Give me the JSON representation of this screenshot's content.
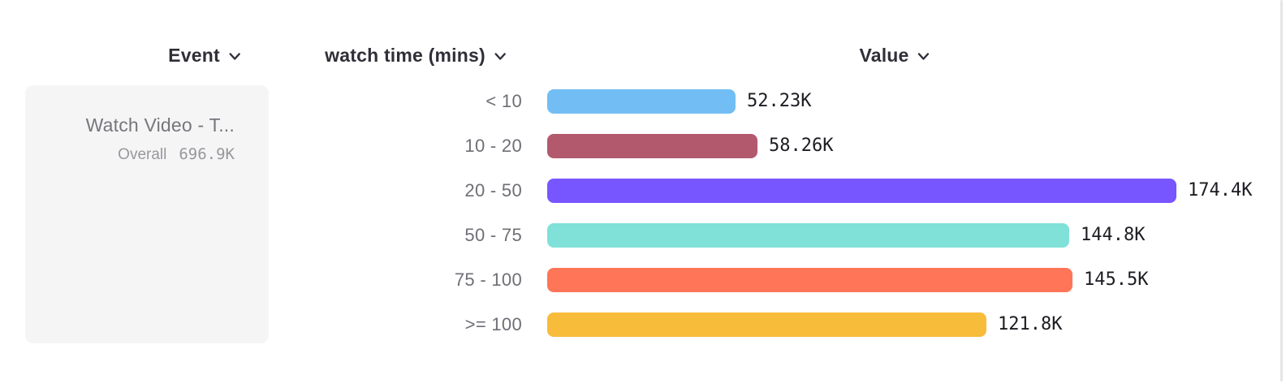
{
  "header": {
    "columns": [
      {
        "id": "event",
        "label": "Event"
      },
      {
        "id": "breakdown",
        "label": "watch time (mins)"
      },
      {
        "id": "value",
        "label": "Value"
      }
    ]
  },
  "event_card": {
    "title": "Watch Video - T...",
    "overall_label": "Overall",
    "overall_value": "696.9K"
  },
  "chart_data": {
    "type": "bar",
    "orientation": "horizontal",
    "title": "",
    "xlabel": "Value",
    "ylabel": "watch time (mins)",
    "categories": [
      "< 10",
      "10 - 20",
      "20 - 50",
      "50 - 75",
      "75 - 100",
      ">= 100"
    ],
    "values": [
      52.23,
      58.26,
      174.4,
      144.8,
      145.5,
      121.8
    ],
    "unit": "K",
    "value_labels": [
      "52.23K",
      "58.26K",
      "174.4K",
      "144.8K",
      "145.5K",
      "121.8K"
    ],
    "bar_colors": [
      "#72BEF4",
      "#B2596E",
      "#7856FF",
      "#80E1D9",
      "#FF7557",
      "#F8BC3B"
    ],
    "xlim": [
      0,
      174.4
    ],
    "grid": false,
    "legend": false
  },
  "colors": {
    "header_text": "#2F2F38",
    "row_label_text": "#6E6E76",
    "value_text": "#1C1C22",
    "card_bg": "#F5F5F6",
    "card_title_text": "#76767C",
    "card_sub_text": "#97979D",
    "divider": "#E5E5E7"
  }
}
